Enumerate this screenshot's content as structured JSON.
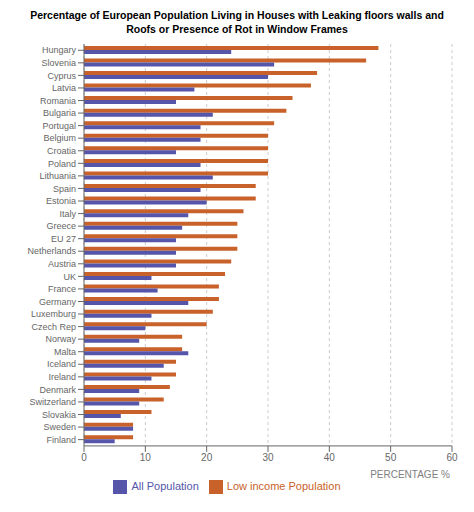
{
  "chart_data": {
    "type": "bar",
    "orientation": "horizontal",
    "title": "Percentage of European Population Living in Houses with Leaking floors walls and\nRoofs or Presence of Rot in Window Frames",
    "xlabel": "PERCENTAGE %",
    "categories": [
      "Hungary",
      "Slovenia",
      "Cyprus",
      "Latvia",
      "Romania",
      "Bulgaria",
      "Portugal",
      "Belgium",
      "Croatia",
      "Poland",
      "Lithuania",
      "Spain",
      "Estonia",
      "Italy",
      "Greece",
      "EU 27",
      "Netherlands",
      "Austria",
      "UK",
      "France",
      "Germany",
      "Luxemburg",
      "Czech Rep",
      "Norway",
      "Malta",
      "Iceland",
      "Ireland",
      "Denmark",
      "Switzerland",
      "Slovakia",
      "Sweden",
      "Finland"
    ],
    "series": [
      {
        "name": "Low income Population",
        "color": "#c8622a",
        "values": [
          48,
          46,
          38,
          37,
          34,
          33,
          31,
          30,
          30,
          30,
          30,
          28,
          28,
          26,
          25,
          25,
          25,
          24,
          23,
          22,
          22,
          21,
          20,
          16,
          16,
          15,
          15,
          14,
          13,
          11,
          8,
          8
        ]
      },
      {
        "name": "All Population",
        "color": "#5555aa",
        "values": [
          24,
          31,
          30,
          18,
          15,
          21,
          19,
          19,
          15,
          19,
          21,
          19,
          20,
          17,
          16,
          15,
          15,
          15,
          11,
          12,
          17,
          11,
          10,
          9,
          17,
          13,
          11,
          9,
          9,
          6,
          8,
          5
        ]
      }
    ],
    "xlim": [
      0,
      60
    ],
    "xticks": [
      0,
      10,
      20,
      30,
      40,
      50,
      60
    ],
    "grid": true,
    "legend": "bottom"
  }
}
